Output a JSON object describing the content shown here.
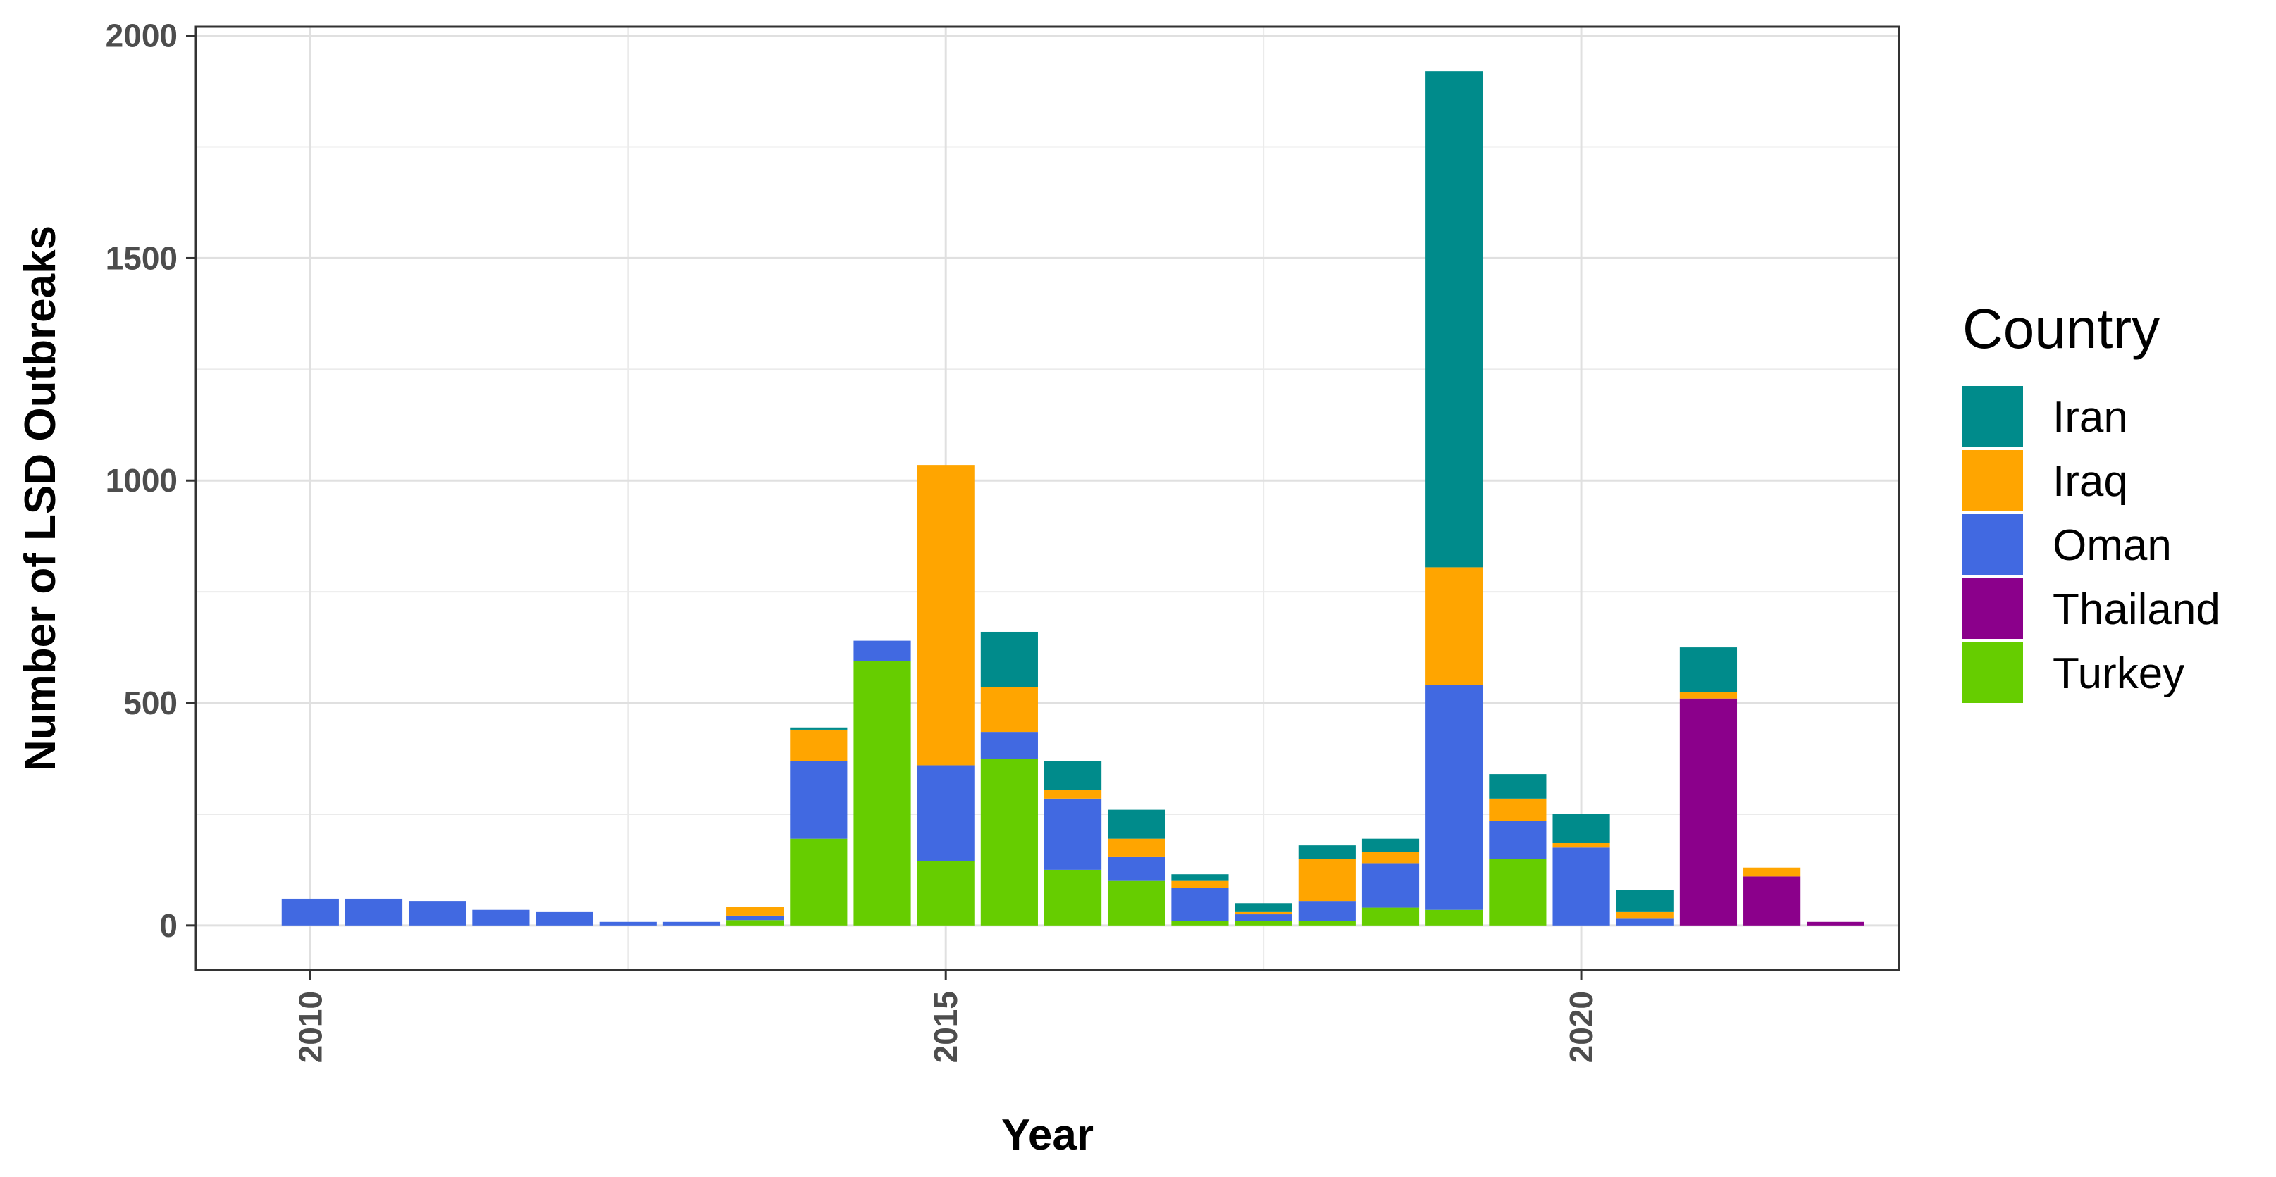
{
  "chart_data": {
    "type": "bar",
    "stacked": true,
    "title": "",
    "xlabel": "Year",
    "ylabel": "Number of LSD Outbreaks",
    "xlim": [
      2009.1,
      2022.5
    ],
    "ylim": [
      -100,
      2020
    ],
    "x_ticks": [
      2010,
      2015,
      2020
    ],
    "x_tick_labels": [
      "2010",
      "2015",
      "2020"
    ],
    "y_ticks": [
      0,
      500,
      1000,
      1500,
      2000
    ],
    "y_tick_labels": [
      "0",
      "500",
      "1000",
      "1500",
      "2000"
    ],
    "grid": true,
    "legend_title": "Country",
    "legend_position": "right",
    "x": [
      2010,
      2010.5,
      2011,
      2011.5,
      2012,
      2012.5,
      2013,
      2013.5,
      2014,
      2014.5,
      2015,
      2015.5,
      2016,
      2016.5,
      2017,
      2017.5,
      2018,
      2018.5,
      2019,
      2019.5,
      2020,
      2020.5,
      2021,
      2021.5,
      2022
    ],
    "series": [
      {
        "name": "Turkey",
        "color": "#66CD00",
        "values": [
          0,
          0,
          0,
          0,
          0,
          0,
          0,
          12,
          195,
          595,
          145,
          375,
          125,
          100,
          10,
          10,
          10,
          40,
          35,
          150,
          0,
          0,
          0,
          0,
          0
        ]
      },
      {
        "name": "Thailand",
        "color": "#8B008B",
        "values": [
          0,
          0,
          0,
          0,
          0,
          0,
          0,
          0,
          0,
          0,
          0,
          0,
          0,
          0,
          0,
          0,
          0,
          0,
          0,
          0,
          0,
          0,
          510,
          110,
          8
        ]
      },
      {
        "name": "Oman",
        "color": "#4169E1",
        "values": [
          60,
          60,
          55,
          35,
          30,
          8,
          8,
          10,
          175,
          45,
          215,
          60,
          160,
          55,
          75,
          15,
          45,
          100,
          505,
          85,
          175,
          15,
          0,
          0,
          0
        ]
      },
      {
        "name": "Iraq",
        "color": "#FFA500",
        "values": [
          0,
          0,
          0,
          0,
          0,
          0,
          0,
          20,
          70,
          0,
          675,
          100,
          20,
          40,
          15,
          5,
          95,
          25,
          265,
          50,
          10,
          15,
          15,
          20,
          0
        ]
      },
      {
        "name": "Iran",
        "color": "#008B8B",
        "values": [
          0,
          0,
          0,
          0,
          0,
          0,
          0,
          0,
          5,
          0,
          0,
          125,
          65,
          65,
          15,
          20,
          30,
          30,
          1115,
          55,
          65,
          50,
          100,
          0,
          0
        ]
      }
    ],
    "legend_order": [
      "Iran",
      "Iraq",
      "Oman",
      "Thailand",
      "Turkey"
    ]
  }
}
